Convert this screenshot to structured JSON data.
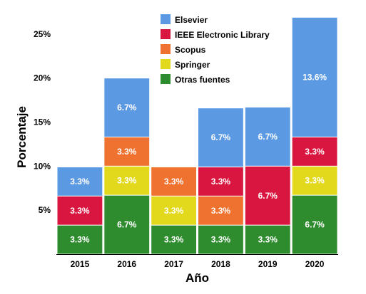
{
  "chart_data": {
    "type": "bar",
    "stacked": true,
    "title": "",
    "xlabel": "Año",
    "ylabel": "Porcentaje",
    "categories": [
      "2015",
      "2016",
      "2017",
      "2018",
      "2019",
      "2020"
    ],
    "ylim": [
      0,
      26.6
    ],
    "yticks": [
      5,
      10,
      15,
      20,
      25
    ],
    "ytick_labels": [
      "5%",
      "10%",
      "15%",
      "20%",
      "25%"
    ],
    "grid": false,
    "legend_position": "top-center",
    "series": [
      {
        "name": "Otras fuentes",
        "color": "#2e8b2e",
        "values": [
          3.3,
          6.7,
          3.3,
          3.3,
          3.3,
          6.7
        ],
        "labels": [
          "3.3%",
          "6.7%",
          "3.3%",
          "3.3%",
          "3.3%",
          "6.7%"
        ]
      },
      {
        "name": "Springer",
        "color": "#e3d91c",
        "values": [
          0,
          3.3,
          3.3,
          0,
          0,
          3.3
        ],
        "labels": [
          "",
          "3.3%",
          "3.3%",
          "",
          "",
          "3.3%"
        ]
      },
      {
        "name": "Scopus",
        "color": "#ef7230",
        "values": [
          0,
          3.3,
          3.3,
          3.3,
          0,
          0
        ],
        "labels": [
          "",
          "3.3%",
          "3.3%",
          "3.3%",
          "",
          ""
        ]
      },
      {
        "name": "IEEE Electronic Library",
        "color": "#d8163f",
        "values": [
          3.3,
          0,
          0,
          3.3,
          6.7,
          3.3
        ],
        "labels": [
          "3.3%",
          "",
          "",
          "3.3%",
          "6.7%",
          "3.3%"
        ]
      },
      {
        "name": "Elsevier",
        "color": "#5b9ae3",
        "values": [
          3.3,
          6.7,
          0,
          6.7,
          6.7,
          13.6
        ],
        "labels": [
          "3.3%",
          "6.7%",
          "",
          "6.7%",
          "6.7%",
          "13.6%"
        ]
      }
    ],
    "legend_order": [
      "Elsevier",
      "IEEE Electronic Library",
      "Scopus",
      "Springer",
      "Otras fuentes"
    ]
  }
}
